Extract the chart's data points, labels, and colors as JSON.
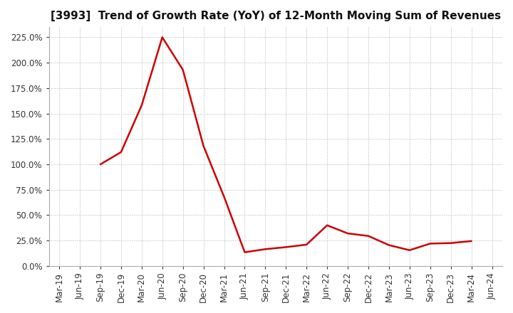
{
  "title": "[3993]  Trend of Growth Rate (YoY) of 12-Month Moving Sum of Revenues",
  "line_color": "#cc0000",
  "background_color": "#ffffff",
  "grid_color": "#b0b0b0",
  "values": [
    null,
    null,
    1.0,
    1.12,
    1.58,
    2.25,
    1.93,
    1.18,
    0.68,
    0.135,
    0.165,
    0.185,
    0.21,
    0.4,
    0.32,
    0.295,
    0.205,
    0.155,
    0.22,
    0.225,
    0.245,
    null
  ],
  "yticks": [
    0.0,
    0.25,
    0.5,
    0.75,
    1.0,
    1.25,
    1.5,
    1.75,
    2.0,
    2.25
  ],
  "ylim": [
    0.0,
    2.35
  ],
  "xtick_labels": [
    "Mar-19",
    "Jun-19",
    "Sep-19",
    "Dec-19",
    "Mar-20",
    "Jun-20",
    "Sep-20",
    "Dec-20",
    "Mar-21",
    "Jun-21",
    "Sep-21",
    "Dec-21",
    "Mar-22",
    "Jun-22",
    "Sep-22",
    "Dec-22",
    "Mar-23",
    "Jun-23",
    "Sep-23",
    "Dec-23",
    "Mar-24",
    "Jun-24"
  ],
  "title_fontsize": 11,
  "tick_fontsize": 8.5,
  "linewidth": 1.8
}
